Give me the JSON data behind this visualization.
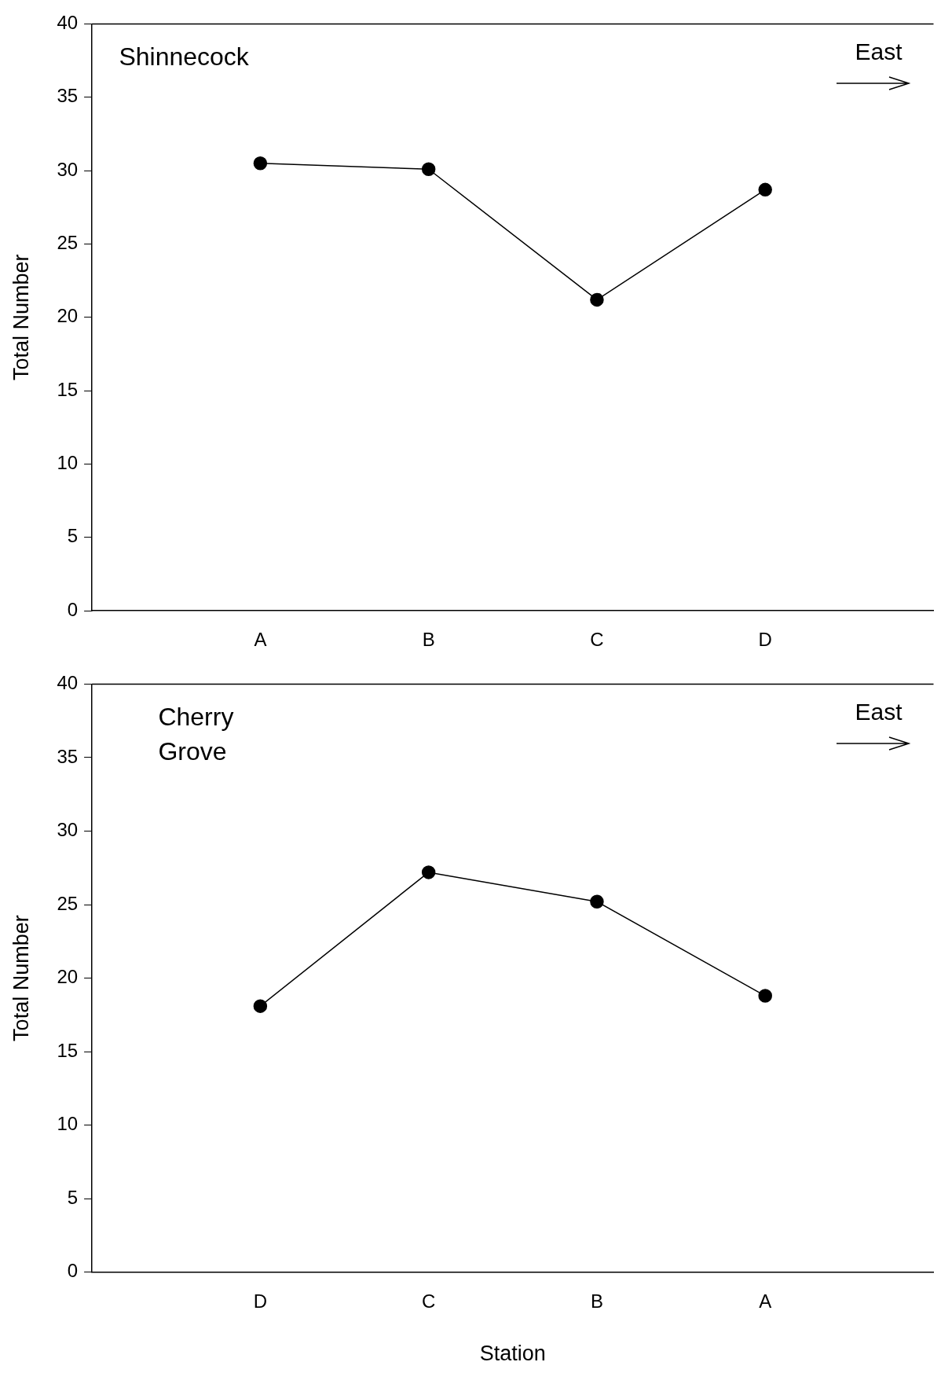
{
  "chart_data": [
    {
      "type": "line",
      "title": "Shinnecock",
      "categories": [
        "A",
        "B",
        "C",
        "D"
      ],
      "ylabel": "Total Number",
      "ylim": [
        0,
        40
      ],
      "yticks": [
        0,
        5,
        10,
        15,
        20,
        25,
        30,
        35,
        40
      ],
      "series": [
        {
          "color": "#000000",
          "values": [
            30.5,
            30.1,
            21.2,
            28.7
          ]
        }
      ],
      "marker": "circle",
      "grid": false,
      "legend": false,
      "annotations": [
        "East"
      ]
    },
    {
      "type": "line",
      "title": "Cherry Grove",
      "categories": [
        "D",
        "C",
        "B",
        "A"
      ],
      "xlabel": "Station",
      "ylabel": "Total Number",
      "ylim": [
        0,
        40
      ],
      "yticks": [
        0,
        5,
        10,
        15,
        20,
        25,
        30,
        35,
        40
      ],
      "series": [
        {
          "color": "#000000",
          "values": [
            18.1,
            27.2,
            25.2,
            18.8
          ]
        }
      ],
      "marker": "circle",
      "grid": false,
      "legend": false,
      "annotations": [
        "East"
      ]
    }
  ]
}
